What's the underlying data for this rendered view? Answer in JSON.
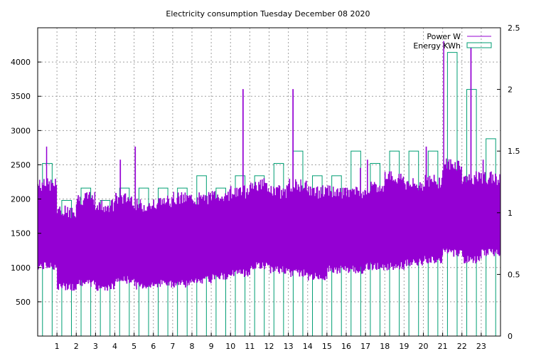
{
  "chart_data": {
    "type": "bar",
    "title": "Electricity consumption Tuesday December 08 2020",
    "xlabel": "",
    "ylabel": "",
    "xlim": [
      0,
      24
    ],
    "ylim_left": [
      0,
      4500
    ],
    "ylim_right": [
      0,
      2.5
    ],
    "x_ticks": [
      1,
      2,
      3,
      4,
      5,
      6,
      7,
      8,
      9,
      10,
      11,
      12,
      13,
      14,
      15,
      16,
      17,
      18,
      19,
      20,
      21,
      22,
      23
    ],
    "y_ticks_left": [
      500,
      1000,
      1500,
      2000,
      2500,
      3000,
      3500,
      4000
    ],
    "y_ticks_right": [
      0,
      0.5,
      1,
      1.5,
      2,
      2.5
    ],
    "grid": true,
    "legend_position": "top-right",
    "colors": {
      "power": "#9400d3",
      "energy": "#009e73",
      "grid": "#a0a0a0"
    },
    "series": [
      {
        "name": "Power W",
        "kind": "line",
        "axis": "left",
        "segments": [
          {
            "h0": 0.0,
            "h1": 1.0,
            "low": 1000,
            "high": 2200,
            "peak": 2760
          },
          {
            "h0": 1.0,
            "h1": 2.0,
            "low": 700,
            "high": 1800,
            "peak": 1900
          },
          {
            "h0": 2.0,
            "h1": 3.0,
            "low": 750,
            "high": 2000,
            "peak": 2000
          },
          {
            "h0": 3.0,
            "h1": 4.0,
            "low": 700,
            "high": 1900,
            "peak": 1900
          },
          {
            "h0": 4.0,
            "h1": 5.0,
            "low": 800,
            "high": 2000,
            "peak": 2570
          },
          {
            "h0": 5.0,
            "h1": 6.0,
            "low": 720,
            "high": 1900,
            "peak": 2760
          },
          {
            "h0": 6.0,
            "h1": 7.0,
            "low": 750,
            "high": 1950,
            "peak": 2000
          },
          {
            "h0": 7.0,
            "h1": 8.0,
            "low": 750,
            "high": 2000,
            "peak": 2000
          },
          {
            "h0": 8.0,
            "h1": 9.0,
            "low": 800,
            "high": 2000,
            "peak": 2050
          },
          {
            "h0": 9.0,
            "h1": 10.0,
            "low": 850,
            "high": 2050,
            "peak": 2050
          },
          {
            "h0": 10.0,
            "h1": 11.0,
            "low": 900,
            "high": 2100,
            "peak": 3600
          },
          {
            "h0": 11.0,
            "h1": 12.0,
            "low": 1000,
            "high": 2200,
            "peak": 2300
          },
          {
            "h0": 12.0,
            "h1": 13.0,
            "low": 950,
            "high": 2100,
            "peak": 2150
          },
          {
            "h0": 13.0,
            "h1": 14.0,
            "low": 900,
            "high": 2200,
            "peak": 3600
          },
          {
            "h0": 14.0,
            "h1": 15.0,
            "low": 850,
            "high": 2100,
            "peak": 2150
          },
          {
            "h0": 15.0,
            "h1": 16.0,
            "low": 950,
            "high": 2100,
            "peak": 2150
          },
          {
            "h0": 16.0,
            "h1": 17.0,
            "low": 950,
            "high": 2100,
            "peak": 2450
          },
          {
            "h0": 17.0,
            "h1": 18.0,
            "low": 1000,
            "high": 2150,
            "peak": 2570
          },
          {
            "h0": 18.0,
            "h1": 19.0,
            "low": 1000,
            "high": 2300,
            "peak": 2400
          },
          {
            "h0": 19.0,
            "h1": 20.0,
            "low": 1050,
            "high": 2200,
            "peak": 2250
          },
          {
            "h0": 20.0,
            "h1": 21.0,
            "low": 1100,
            "high": 2250,
            "peak": 2760
          },
          {
            "h0": 21.0,
            "h1": 22.0,
            "low": 1200,
            "high": 2500,
            "peak": 4300
          },
          {
            "h0": 22.0,
            "h1": 23.0,
            "low": 1100,
            "high": 2300,
            "peak": 4200
          },
          {
            "h0": 23.0,
            "h1": 24.0,
            "low": 1200,
            "high": 2300,
            "peak": 2570
          }
        ]
      },
      {
        "name": "Energy KWh",
        "kind": "bar",
        "axis": "right",
        "x": [
          0,
          1,
          2,
          3,
          4,
          5,
          6,
          7,
          8,
          9,
          10,
          11,
          12,
          13,
          14,
          15,
          16,
          17,
          18,
          19,
          20,
          21,
          22,
          23
        ],
        "values": [
          1.4,
          1.1,
          1.2,
          1.1,
          1.2,
          1.2,
          1.2,
          1.2,
          1.3,
          1.2,
          1.3,
          1.3,
          1.4,
          1.5,
          1.3,
          1.3,
          1.5,
          1.4,
          1.5,
          1.5,
          1.5,
          2.3,
          2.0,
          1.6
        ]
      }
    ]
  }
}
